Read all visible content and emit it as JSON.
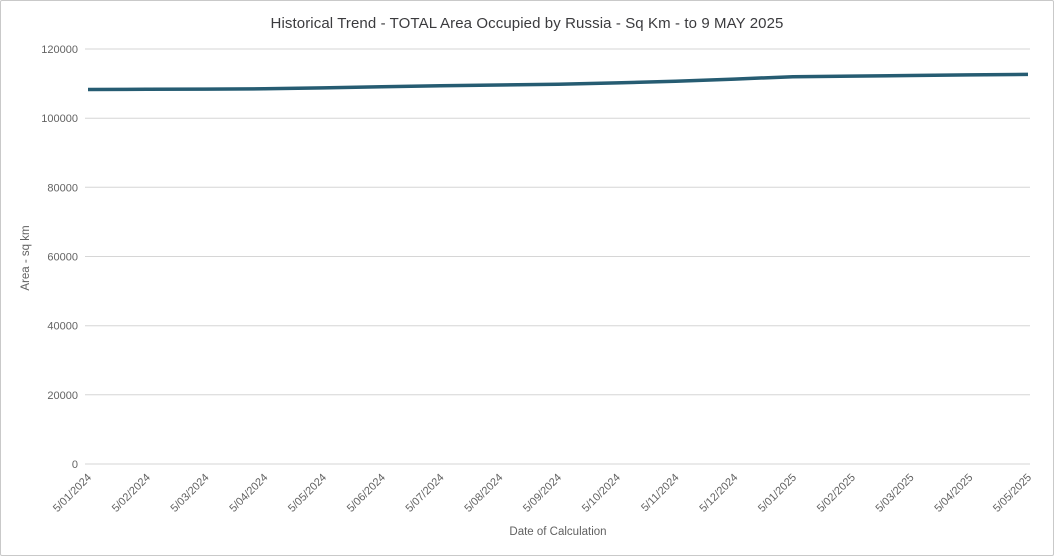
{
  "chart_data": {
    "type": "line",
    "title": "Historical Trend - TOTAL Area Occupied by Russia - Sq Km - to 9 MAY 2025",
    "xlabel": "Date of Calculation",
    "ylabel": "Area - sq km",
    "categories": [
      "5/01/2024",
      "5/02/2024",
      "5/03/2024",
      "5/04/2024",
      "5/05/2024",
      "5/06/2024",
      "5/07/2024",
      "5/08/2024",
      "5/09/2024",
      "5/10/2024",
      "5/11/2024",
      "5/12/2024",
      "5/01/2025",
      "5/02/2025",
      "5/03/2025",
      "5/04/2025",
      "5/05/2025"
    ],
    "series": [
      {
        "name": "Total area occupied by Russia (sq km)",
        "values": [
          108300,
          108350,
          108400,
          108500,
          108750,
          109100,
          109400,
          109600,
          109800,
          110200,
          110650,
          111300,
          112000,
          112150,
          112350,
          112500,
          112650
        ]
      }
    ],
    "ylim": [
      0,
      120000
    ],
    "ytick_step": 20000,
    "ytick_labels": [
      "0",
      "20000",
      "40000",
      "60000",
      "80000",
      "100000",
      "120000"
    ],
    "grid": "horizontal-only",
    "legend": "none",
    "x_tick_rotation_deg": 45,
    "colors": {
      "line": "#265c72",
      "gridline": "#d6d6d6",
      "tick_text": "#636363",
      "title_text": "#3b3b3e"
    }
  }
}
